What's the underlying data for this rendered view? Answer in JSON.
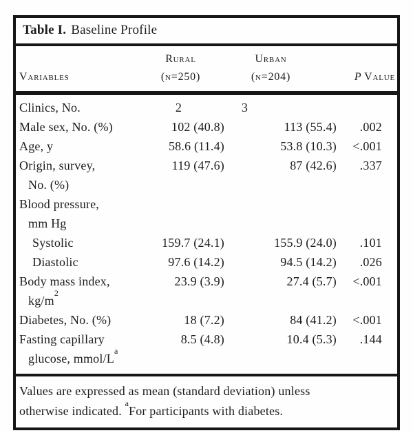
{
  "table": {
    "title_label": "Table I.",
    "title_text": "Baseline Profile",
    "columns": {
      "variables": "Variables",
      "rural_name": "Rural",
      "rural_n": "(n=250)",
      "urban_name": "Urban",
      "urban_n": "(n=204)",
      "p_italic": "P",
      "p_rest": "Value"
    },
    "rows": [
      {
        "label": "Clinics, No.",
        "rural": "2",
        "urban": "3",
        "p": "",
        "align": "center"
      },
      {
        "label": "Male sex, No. (%)",
        "rural": "102 (40.8)",
        "urban": "113 (55.4)",
        "p": ".002"
      },
      {
        "label": "Age, y",
        "rural": "58.6 (11.4)",
        "urban": "53.8 (10.3)",
        "p": "<.001"
      },
      {
        "label": "Origin, survey,",
        "label_line2": "No. (%)",
        "rural": "119 (47.6)",
        "urban": "87 (42.6)",
        "p": ".337"
      },
      {
        "label": "Blood pressure,",
        "label_line2": "mm Hg",
        "rural": "",
        "urban": "",
        "p": ""
      },
      {
        "label": "Systolic",
        "indent": 1,
        "rural": "159.7 (24.1)",
        "urban": "155.9 (24.0)",
        "p": ".101"
      },
      {
        "label": "Diastolic",
        "indent": 1,
        "rural": "97.6 (14.2)",
        "urban": "94.5 (14.2)",
        "p": ".026"
      },
      {
        "label": "Body mass index,",
        "label_line2": "kg/m",
        "label_line2_sup": "2",
        "rural": "23.9 (3.9)",
        "urban": "27.4 (5.7)",
        "p": "<.001"
      },
      {
        "label": "Diabetes, No. (%)",
        "rural": "18 (7.2)",
        "urban": "84 (41.2)",
        "p": "<.001"
      },
      {
        "label": "Fasting capillary",
        "label_line2": "glucose, mmol/L",
        "label_line2_sup": "a",
        "rural": "8.5 (4.8)",
        "urban": "10.4 (5.3)",
        "p": ".144"
      }
    ],
    "footnote": {
      "line1": "Values are expressed as mean (standard deviation) unless",
      "line2_pre": "otherwise indicated. ",
      "line2_sup": "a",
      "line2_post": "For participants with diabetes."
    }
  }
}
